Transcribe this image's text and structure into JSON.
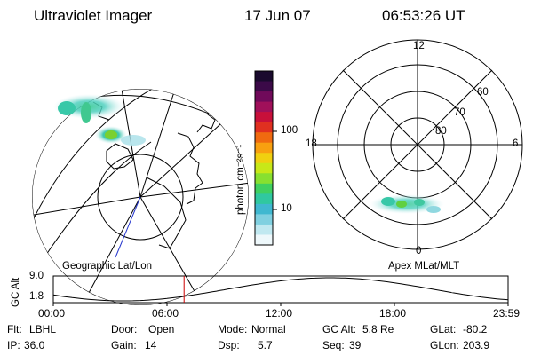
{
  "header": {
    "instrument": "Ultraviolet Imager",
    "date": "17 Jun 07",
    "time": "06:53:26 UT"
  },
  "left_panel": {
    "projection_label": "Geographic Lat/Lon"
  },
  "colorbar": {
    "unit_label": "photon cm⁻²s⁻¹",
    "ticks": [
      "100",
      "10"
    ],
    "colors": [
      "#1a0a2e",
      "#3b0a48",
      "#700a5a",
      "#a0105a",
      "#c8103a",
      "#e03020",
      "#f06a10",
      "#f8a010",
      "#f0d010",
      "#c8e818",
      "#88e030",
      "#40d060",
      "#30c8a0",
      "#40b8d0",
      "#80d0e0",
      "#c0e8f0",
      "#eef8fb"
    ]
  },
  "right_panel": {
    "projection_label": "Apex MLat/MLT",
    "mlt_labels": [
      "12",
      "18",
      "6",
      "0"
    ],
    "mlat_labels": [
      "60",
      "70",
      "80"
    ]
  },
  "altitude_plot": {
    "ylabel": "GC Alt",
    "yticks": [
      "9.0",
      "1.8"
    ],
    "xticks": [
      "00:00",
      "06:00",
      "12:00",
      "18:00",
      "23:59"
    ],
    "current_time_marker_hours": 6.9,
    "marker_color": "#cc0000"
  },
  "status": {
    "row1": [
      {
        "key": "Flt:",
        "value": "LBHL"
      },
      {
        "key": "Door:",
        "value": "Open"
      },
      {
        "key": "Mode:",
        "value": "Normal"
      },
      {
        "key": "GC Alt:",
        "value": "5.8 Re"
      },
      {
        "key": "GLat:",
        "value": "-80.2"
      }
    ],
    "row2": [
      {
        "key": "IP:",
        "value": "36.0"
      },
      {
        "key": "Gain:",
        "value": "14"
      },
      {
        "key": "Dsp:",
        "value": "5.7"
      },
      {
        "key": "Seq:",
        "value": "39"
      },
      {
        "key": "GLon:",
        "value": "203.9"
      }
    ]
  }
}
